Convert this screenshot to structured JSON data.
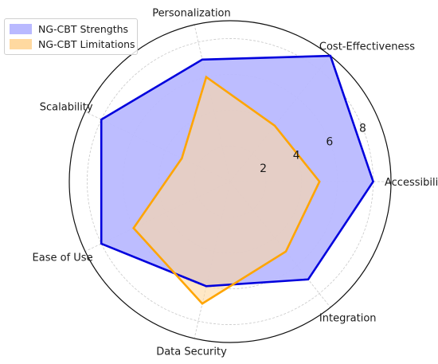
{
  "chart_data": {
    "type": "radar",
    "categories": [
      "Accessibility",
      "Cost-Effectiveness",
      "Personalization",
      "Scalability",
      "Ease of Use",
      "Data Security",
      "Integration"
    ],
    "rlim": [
      0,
      9
    ],
    "rticks": [
      2,
      4,
      6,
      8
    ],
    "grid": true,
    "legend_position": "top-left",
    "series": [
      {
        "name": "NG-CBT Strengths",
        "values": [
          8,
          9,
          7,
          8,
          8,
          6,
          7
        ],
        "color": "#0000dd",
        "fill": "#b9b9ff"
      },
      {
        "name": "NG-CBT Limitations",
        "values": [
          5,
          4,
          6,
          3,
          6,
          7,
          5
        ],
        "color": "#ffa500",
        "fill": "#ffd9a0"
      }
    ]
  }
}
